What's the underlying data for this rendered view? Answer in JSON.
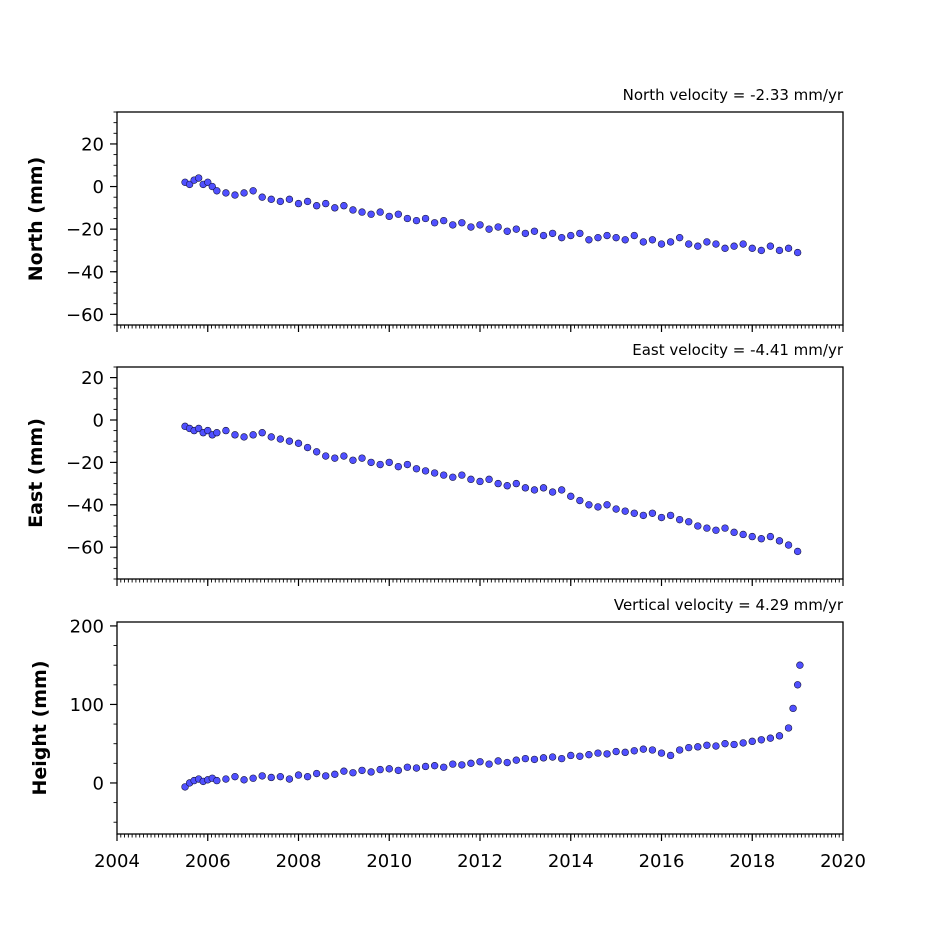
{
  "chart_data": [
    {
      "type": "scatter",
      "title": "North velocity = -2.33 mm/yr",
      "ylabel": "North (mm)",
      "xlabel": "",
      "xlim": [
        2004,
        2020
      ],
      "ylim": [
        -65,
        35
      ],
      "yticks": [
        -60,
        -40,
        -20,
        0,
        20
      ],
      "ytick_labels": [
        "−60",
        "−40",
        "−20",
        "0",
        "20"
      ],
      "xticks": [
        2004,
        2006,
        2008,
        2010,
        2012,
        2014,
        2016,
        2018,
        2020
      ],
      "show_xtick_labels": false,
      "marker_color": "#5050ff",
      "marker_edge": "#111133",
      "series": [
        {
          "x": [
            2005.5,
            2005.6,
            2005.7,
            2005.8,
            2005.9,
            2006.0,
            2006.1,
            2006.2,
            2006.4,
            2006.6,
            2006.8,
            2007.0,
            2007.2,
            2007.4,
            2007.6,
            2007.8,
            2008.0,
            2008.2,
            2008.4,
            2008.6,
            2008.8,
            2009.0,
            2009.2,
            2009.4,
            2009.6,
            2009.8,
            2010.0,
            2010.2,
            2010.4,
            2010.6,
            2010.8,
            2011.0,
            2011.2,
            2011.4,
            2011.6,
            2011.8,
            2012.0,
            2012.2,
            2012.4,
            2012.6,
            2012.8,
            2013.0,
            2013.2,
            2013.4,
            2013.6,
            2013.8,
            2014.0,
            2014.2,
            2014.4,
            2014.6,
            2014.8,
            2015.0,
            2015.2,
            2015.4,
            2015.6,
            2015.8,
            2016.0,
            2016.2,
            2016.4,
            2016.6,
            2016.8,
            2017.0,
            2017.2,
            2017.4,
            2017.6,
            2017.8,
            2018.0,
            2018.2,
            2018.4,
            2018.6,
            2018.8,
            2019.0
          ],
          "y": [
            2,
            1,
            3,
            4,
            1,
            2,
            0,
            -2,
            -3,
            -4,
            -3,
            -2,
            -5,
            -6,
            -7,
            -6,
            -8,
            -7,
            -9,
            -8,
            -10,
            -9,
            -11,
            -12,
            -13,
            -12,
            -14,
            -13,
            -15,
            -16,
            -15,
            -17,
            -16,
            -18,
            -17,
            -19,
            -18,
            -20,
            -19,
            -21,
            -20,
            -22,
            -21,
            -23,
            -22,
            -24,
            -23,
            -22,
            -25,
            -24,
            -23,
            -24,
            -25,
            -23,
            -26,
            -25,
            -27,
            -26,
            -24,
            -27,
            -28,
            -26,
            -27,
            -29,
            -28,
            -27,
            -29,
            -30,
            -28,
            -30,
            -29,
            -31
          ]
        }
      ]
    },
    {
      "type": "scatter",
      "title": "East velocity = -4.41 mm/yr",
      "ylabel": "East (mm)",
      "xlabel": "",
      "xlim": [
        2004,
        2020
      ],
      "ylim": [
        -75,
        25
      ],
      "yticks": [
        -60,
        -40,
        -20,
        0,
        20
      ],
      "ytick_labels": [
        "−60",
        "−40",
        "−20",
        "0",
        "20"
      ],
      "xticks": [
        2004,
        2006,
        2008,
        2010,
        2012,
        2014,
        2016,
        2018,
        2020
      ],
      "show_xtick_labels": false,
      "marker_color": "#5050ff",
      "marker_edge": "#111133",
      "series": [
        {
          "x": [
            2005.5,
            2005.6,
            2005.7,
            2005.8,
            2005.9,
            2006.0,
            2006.1,
            2006.2,
            2006.4,
            2006.6,
            2006.8,
            2007.0,
            2007.2,
            2007.4,
            2007.6,
            2007.8,
            2008.0,
            2008.2,
            2008.4,
            2008.6,
            2008.8,
            2009.0,
            2009.2,
            2009.4,
            2009.6,
            2009.8,
            2010.0,
            2010.2,
            2010.4,
            2010.6,
            2010.8,
            2011.0,
            2011.2,
            2011.4,
            2011.6,
            2011.8,
            2012.0,
            2012.2,
            2012.4,
            2012.6,
            2012.8,
            2013.0,
            2013.2,
            2013.4,
            2013.6,
            2013.8,
            2014.0,
            2014.2,
            2014.4,
            2014.6,
            2014.8,
            2015.0,
            2015.2,
            2015.4,
            2015.6,
            2015.8,
            2016.0,
            2016.2,
            2016.4,
            2016.6,
            2016.8,
            2017.0,
            2017.2,
            2017.4,
            2017.6,
            2017.8,
            2018.0,
            2018.2,
            2018.4,
            2018.6,
            2018.8,
            2019.0
          ],
          "y": [
            -3,
            -4,
            -5,
            -4,
            -6,
            -5,
            -7,
            -6,
            -5,
            -7,
            -8,
            -7,
            -6,
            -8,
            -9,
            -10,
            -11,
            -13,
            -15,
            -17,
            -18,
            -17,
            -19,
            -18,
            -20,
            -21,
            -20,
            -22,
            -21,
            -23,
            -24,
            -25,
            -26,
            -27,
            -26,
            -28,
            -29,
            -28,
            -30,
            -31,
            -30,
            -32,
            -33,
            -32,
            -34,
            -33,
            -36,
            -38,
            -40,
            -41,
            -40,
            -42,
            -43,
            -44,
            -45,
            -44,
            -46,
            -45,
            -47,
            -48,
            -50,
            -51,
            -52,
            -51,
            -53,
            -54,
            -55,
            -56,
            -55,
            -57,
            -59,
            -62
          ]
        }
      ]
    },
    {
      "type": "scatter",
      "title": "Vertical velocity = 4.29 mm/yr",
      "ylabel": "Height (mm)",
      "xlabel": "",
      "xlim": [
        2004,
        2020
      ],
      "ylim": [
        -65,
        205
      ],
      "yticks": [
        0,
        100,
        200
      ],
      "ytick_labels": [
        "0",
        "100",
        "200"
      ],
      "xticks": [
        2004,
        2006,
        2008,
        2010,
        2012,
        2014,
        2016,
        2018,
        2020
      ],
      "xtick_labels": [
        "2004",
        "2006",
        "2008",
        "2010",
        "2012",
        "2014",
        "2016",
        "2018",
        "2020"
      ],
      "show_xtick_labels": true,
      "marker_color": "#5050ff",
      "marker_edge": "#111133",
      "series": [
        {
          "x": [
            2005.5,
            2005.6,
            2005.7,
            2005.8,
            2005.9,
            2006.0,
            2006.1,
            2006.2,
            2006.4,
            2006.6,
            2006.8,
            2007.0,
            2007.2,
            2007.4,
            2007.6,
            2007.8,
            2008.0,
            2008.2,
            2008.4,
            2008.6,
            2008.8,
            2009.0,
            2009.2,
            2009.4,
            2009.6,
            2009.8,
            2010.0,
            2010.2,
            2010.4,
            2010.6,
            2010.8,
            2011.0,
            2011.2,
            2011.4,
            2011.6,
            2011.8,
            2012.0,
            2012.2,
            2012.4,
            2012.6,
            2012.8,
            2013.0,
            2013.2,
            2013.4,
            2013.6,
            2013.8,
            2014.0,
            2014.2,
            2014.4,
            2014.6,
            2014.8,
            2015.0,
            2015.2,
            2015.4,
            2015.6,
            2015.8,
            2016.0,
            2016.2,
            2016.4,
            2016.6,
            2016.8,
            2017.0,
            2017.2,
            2017.4,
            2017.6,
            2017.8,
            2018.0,
            2018.2,
            2018.4,
            2018.6,
            2018.8,
            2018.9,
            2019.0,
            2019.05
          ],
          "y": [
            -5,
            0,
            3,
            5,
            2,
            4,
            6,
            3,
            5,
            8,
            4,
            6,
            9,
            7,
            8,
            5,
            10,
            8,
            12,
            9,
            11,
            15,
            13,
            16,
            14,
            17,
            18,
            16,
            20,
            19,
            21,
            22,
            20,
            24,
            23,
            25,
            27,
            24,
            28,
            26,
            29,
            31,
            30,
            32,
            33,
            31,
            35,
            34,
            36,
            38,
            37,
            40,
            39,
            41,
            43,
            42,
            38,
            35,
            42,
            45,
            46,
            48,
            47,
            50,
            49,
            51,
            53,
            55,
            57,
            60,
            70,
            95,
            125,
            150
          ]
        }
      ]
    }
  ]
}
